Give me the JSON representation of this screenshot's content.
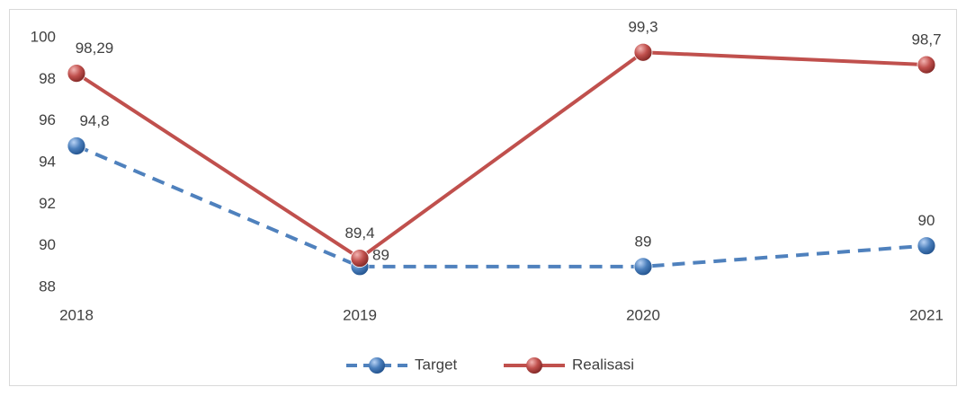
{
  "chart_data": {
    "type": "line",
    "categories": [
      "2018",
      "2019",
      "2020",
      "2021"
    ],
    "series": [
      {
        "name": "Target",
        "color": "#4f81bd",
        "dashed": true,
        "values": [
          94.8,
          89,
          89,
          90
        ],
        "value_labels": [
          "94,8",
          "89",
          "89",
          "90"
        ]
      },
      {
        "name": "Realisasi",
        "color": "#c0504d",
        "dashed": false,
        "values": [
          98.29,
          89.4,
          99.3,
          98.7
        ],
        "value_labels": [
          "98,29",
          "89,4",
          "99,3",
          "98,7"
        ]
      }
    ],
    "ylim": [
      88,
      100
    ],
    "yticks": [
      88,
      90,
      92,
      94,
      96,
      98,
      100
    ],
    "grid": false,
    "legend": "bottom"
  }
}
